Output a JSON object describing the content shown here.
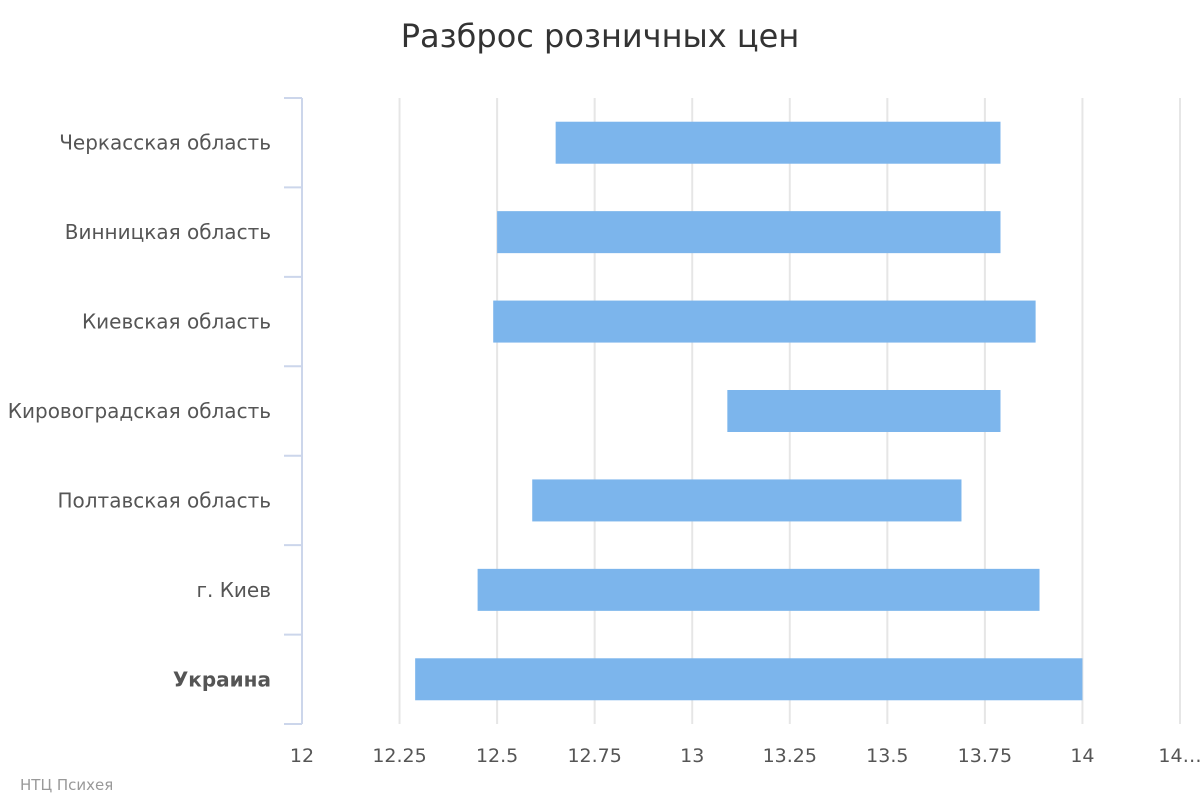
{
  "chart_data": {
    "type": "bar",
    "title": "Разброс розничных цен",
    "categories": [
      "Черкасская область",
      "Винницкая область",
      "Киевская область",
      "Кировоградская область",
      "Полтавская область",
      "г. Киев",
      "Украина"
    ],
    "series": [
      {
        "ranges": [
          [
            12.65,
            13.79
          ],
          [
            12.5,
            13.79
          ],
          [
            12.49,
            13.88
          ],
          [
            13.09,
            13.79
          ],
          [
            12.59,
            13.69
          ],
          [
            12.45,
            13.89
          ],
          [
            12.29,
            14.0
          ]
        ]
      }
    ],
    "xlim": [
      12,
      14.25
    ],
    "x_ticks": [
      "12",
      "12.25",
      "12.5",
      "12.75",
      "13",
      "13.25",
      "13.5",
      "13.75",
      "14",
      "14…"
    ],
    "orientation": "horizontal",
    "grid": true,
    "bar_color": "#7cb5ec"
  },
  "credits": "НТЦ Психея"
}
